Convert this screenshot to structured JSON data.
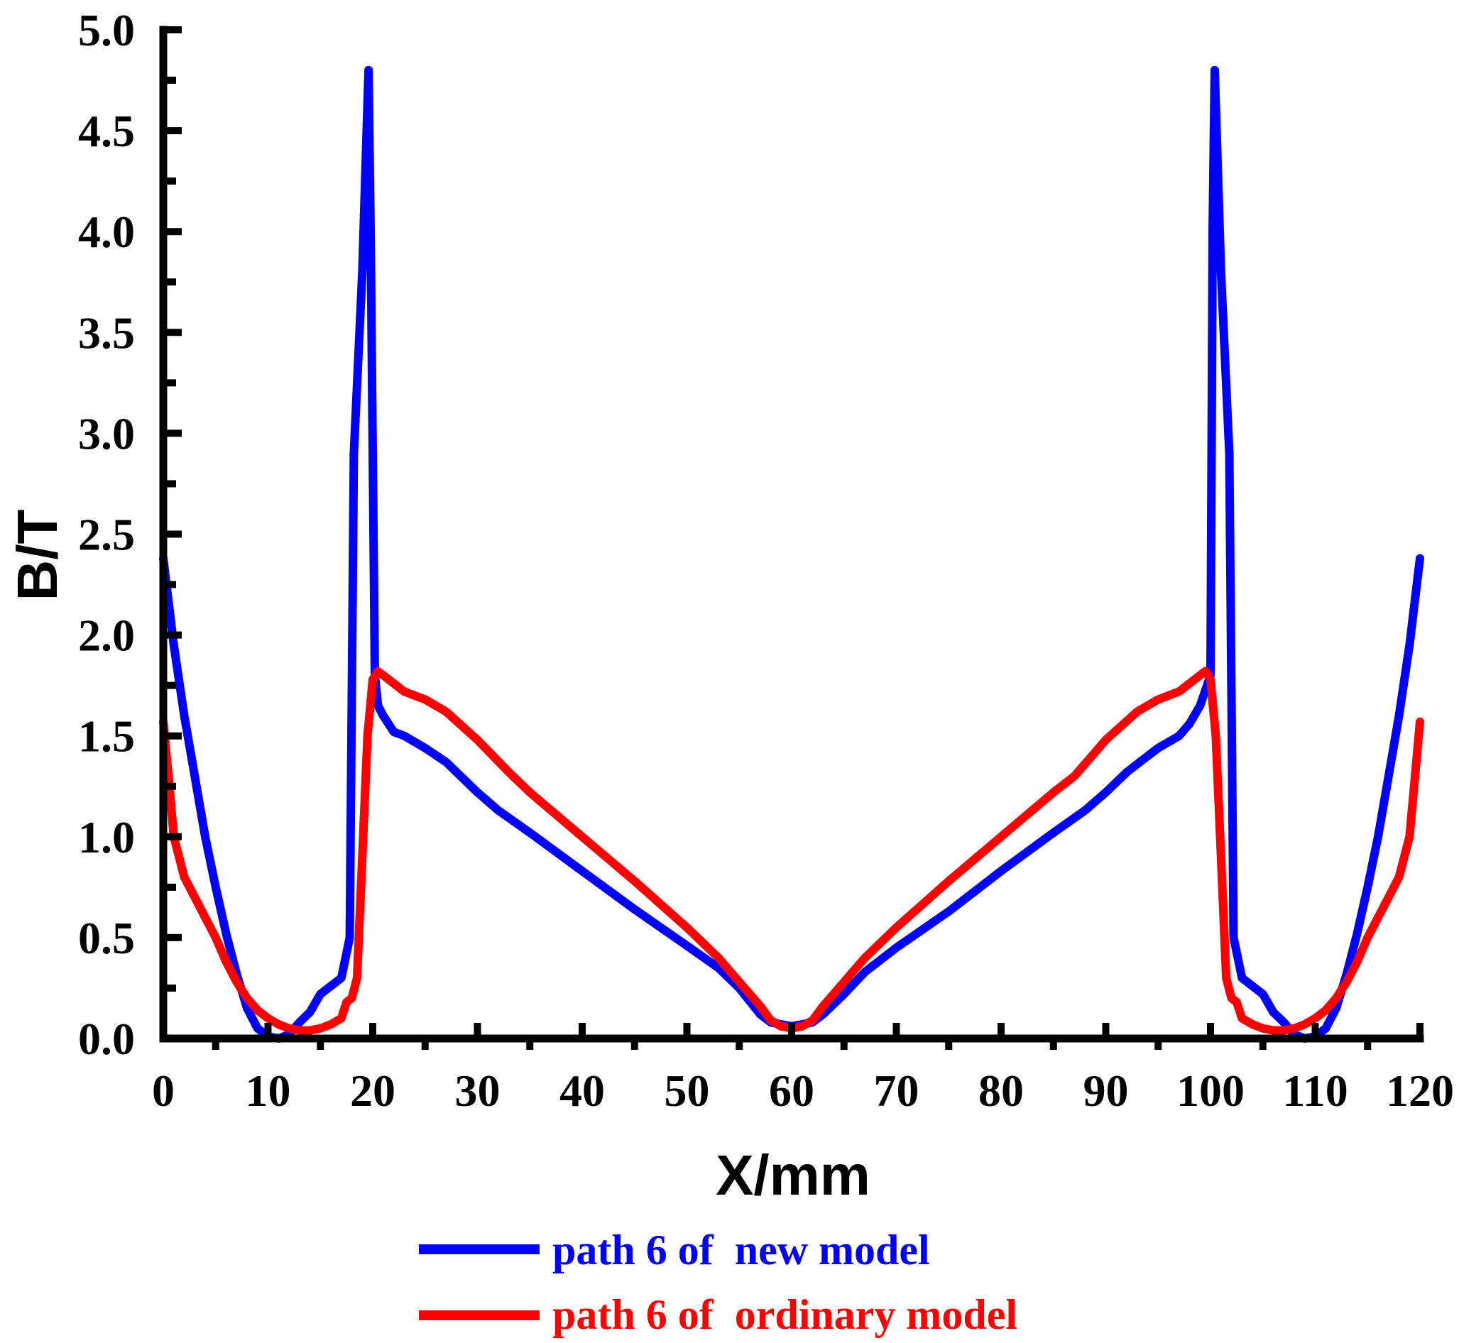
{
  "chart_data": {
    "type": "line",
    "title": "",
    "xlabel": "X/mm",
    "ylabel": "B/T",
    "xlim": [
      0,
      120
    ],
    "ylim": [
      0,
      5.0
    ],
    "xticks": [
      0,
      10,
      20,
      30,
      40,
      50,
      60,
      70,
      80,
      90,
      100,
      110,
      120
    ],
    "xtick_labels": [
      "0",
      "10",
      "20",
      "30",
      "40",
      "50",
      "60",
      "70",
      "80",
      "90",
      "100",
      "110",
      "120"
    ],
    "yticks": [
      0,
      0.5,
      1.0,
      1.5,
      2.0,
      2.5,
      3.0,
      3.5,
      4.0,
      4.5,
      5.0
    ],
    "ytick_labels": [
      "0.0",
      "0.5",
      "1.0",
      "1.5",
      "2.0",
      "2.5",
      "3.0",
      "3.5",
      "4.0",
      "4.5",
      "5.0"
    ],
    "grid": false,
    "legend_position": "bottom-center",
    "series": [
      {
        "name": "path 6 of  new model",
        "color": "#0000ff",
        "x": [
          0,
          1,
          2,
          3,
          4,
          5,
          6,
          7,
          8,
          9,
          10,
          11,
          12,
          13,
          14,
          15,
          16,
          17,
          17.8,
          18.2,
          19,
          19.6,
          19.8,
          20.2,
          20.5,
          21,
          22,
          23,
          25,
          27,
          30,
          32,
          35,
          40,
          45,
          50,
          53,
          55,
          57,
          58,
          60,
          62,
          63,
          65,
          67,
          70,
          75,
          80,
          85,
          88,
          90,
          92,
          95,
          97,
          98,
          99,
          100,
          100.2,
          100.4,
          101,
          101.8,
          102.2,
          103,
          104,
          105,
          106,
          107,
          108,
          109,
          110,
          111,
          112,
          113,
          114,
          115,
          116,
          117,
          118,
          119,
          120
        ],
        "y": [
          2.38,
          1.95,
          1.6,
          1.3,
          1.0,
          0.75,
          0.52,
          0.32,
          0.15,
          0.05,
          0.01,
          0.0,
          0.02,
          0.08,
          0.13,
          0.22,
          0.26,
          0.3,
          0.5,
          2.9,
          3.8,
          4.8,
          4.0,
          1.8,
          1.65,
          1.6,
          1.52,
          1.5,
          1.44,
          1.37,
          1.22,
          1.13,
          1.02,
          0.83,
          0.64,
          0.46,
          0.35,
          0.25,
          0.12,
          0.08,
          0.06,
          0.08,
          0.12,
          0.22,
          0.33,
          0.45,
          0.63,
          0.83,
          1.02,
          1.13,
          1.22,
          1.32,
          1.44,
          1.5,
          1.56,
          1.65,
          1.8,
          4.0,
          4.8,
          3.8,
          2.9,
          0.5,
          0.3,
          0.26,
          0.22,
          0.13,
          0.08,
          0.02,
          0.0,
          0.01,
          0.05,
          0.15,
          0.32,
          0.52,
          0.75,
          1.0,
          1.3,
          1.6,
          1.95,
          2.38
        ]
      },
      {
        "name": "path 6 of  ordinary model",
        "color": "#ff0000",
        "x": [
          0,
          0.5,
          1,
          2,
          3,
          4,
          5,
          6,
          7,
          8,
          9,
          10,
          11,
          12,
          13,
          14,
          15,
          16,
          17,
          17.5,
          18,
          18.5,
          19,
          19.5,
          20,
          20.5,
          21,
          22,
          23,
          24,
          25,
          27,
          30,
          33,
          35,
          40,
          45,
          50,
          53,
          55,
          57,
          58,
          59,
          60,
          61,
          62,
          63,
          65,
          67,
          70,
          75,
          80,
          85,
          87,
          90,
          93,
          95,
          96,
          97,
          98,
          99,
          99.5,
          100,
          100.5,
          101,
          101.5,
          102,
          102.5,
          103,
          104,
          105,
          106,
          107,
          108,
          109,
          110,
          111,
          112,
          113,
          114,
          115,
          116,
          117,
          118,
          119,
          120
        ],
        "y": [
          1.57,
          1.3,
          1.0,
          0.8,
          0.7,
          0.6,
          0.5,
          0.38,
          0.28,
          0.2,
          0.14,
          0.1,
          0.07,
          0.05,
          0.04,
          0.04,
          0.05,
          0.07,
          0.1,
          0.18,
          0.2,
          0.3,
          0.9,
          1.5,
          1.78,
          1.82,
          1.8,
          1.76,
          1.72,
          1.7,
          1.68,
          1.62,
          1.48,
          1.32,
          1.22,
          1.0,
          0.78,
          0.55,
          0.4,
          0.28,
          0.16,
          0.09,
          0.06,
          0.05,
          0.06,
          0.09,
          0.16,
          0.28,
          0.4,
          0.55,
          0.78,
          1.0,
          1.22,
          1.3,
          1.48,
          1.62,
          1.68,
          1.7,
          1.72,
          1.76,
          1.8,
          1.82,
          1.78,
          1.5,
          0.9,
          0.3,
          0.2,
          0.18,
          0.1,
          0.07,
          0.05,
          0.04,
          0.04,
          0.05,
          0.07,
          0.1,
          0.14,
          0.2,
          0.28,
          0.38,
          0.5,
          0.6,
          0.7,
          0.8,
          1.0,
          1.57
        ]
      }
    ]
  }
}
